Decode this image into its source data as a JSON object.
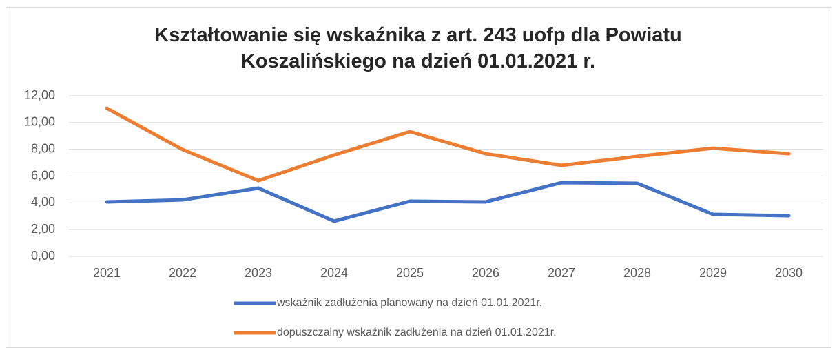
{
  "chart_data": {
    "type": "line",
    "title": "Kształtowanie się wskaźnika z art. 243 uofp dla Powiatu Koszalińskiego na dzień 01.01.2021 r.",
    "categories": [
      "2021",
      "2022",
      "2023",
      "2024",
      "2025",
      "2026",
      "2027",
      "2028",
      "2029",
      "2030"
    ],
    "series": [
      {
        "name": "wskaźnik zadłużenia planowany na dzień 01.01.2021r.",
        "color": "#4472c4",
        "values": [
          4.07,
          4.22,
          5.1,
          2.63,
          4.12,
          4.07,
          5.51,
          5.46,
          3.14,
          3.04
        ]
      },
      {
        "name": "dopuszczalny wskaźnik zadłużenia na dzień 01.01.2021r.",
        "color": "#ed7d31",
        "values": [
          11.07,
          7.98,
          5.66,
          7.57,
          9.32,
          7.67,
          6.8,
          7.47,
          8.08,
          7.67
        ]
      }
    ],
    "ylim": [
      0,
      12
    ],
    "yticks": [
      {
        "value": 0,
        "label": "0,00"
      },
      {
        "value": 2,
        "label": "2,00"
      },
      {
        "value": 4,
        "label": "4,00"
      },
      {
        "value": 6,
        "label": "6,00"
      },
      {
        "value": 8,
        "label": "8,00"
      },
      {
        "value": 10,
        "label": "10,00"
      },
      {
        "value": 12,
        "label": "12,00"
      }
    ],
    "grid": true,
    "legend": "bottom"
  }
}
